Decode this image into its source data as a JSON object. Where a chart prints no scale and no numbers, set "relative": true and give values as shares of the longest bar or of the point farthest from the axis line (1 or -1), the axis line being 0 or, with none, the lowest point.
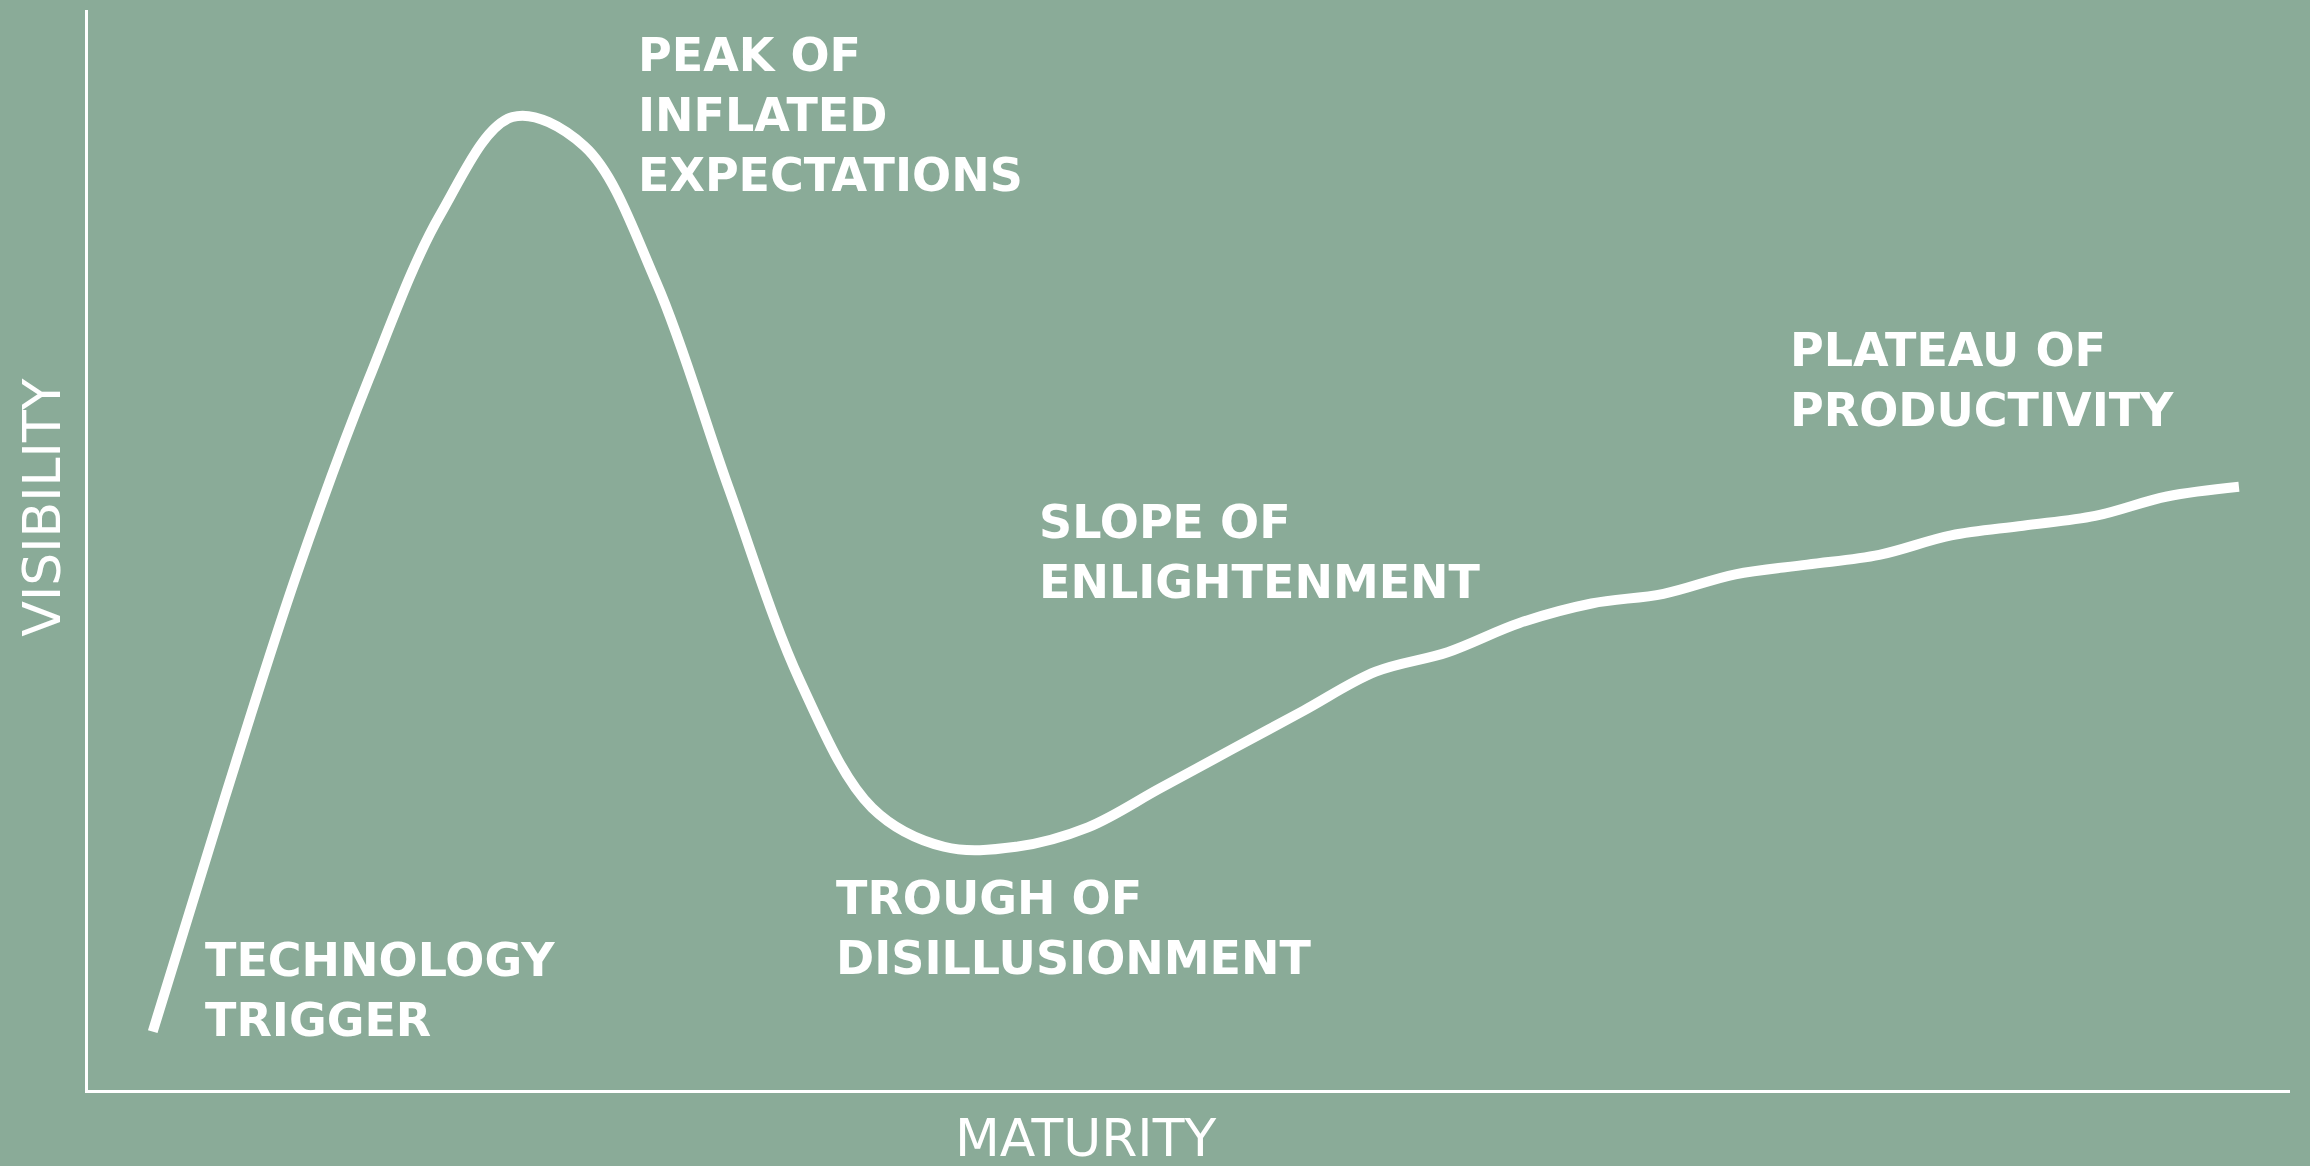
{
  "chart_data": {
    "type": "line",
    "relative": true,
    "xlabel": "MATURITY",
    "ylabel": "VISIBILITY",
    "categories": [
      null,
      null,
      null,
      null,
      null,
      null,
      null,
      null,
      null,
      null,
      null,
      null,
      null,
      null,
      null,
      null,
      null,
      null,
      null,
      null,
      null,
      null,
      null,
      null,
      null,
      null,
      null,
      null,
      null,
      null
    ],
    "series": [
      {
        "color": "#ffffff",
        "values": [
          0.06,
          0.3,
          0.53,
          0.73,
          0.9,
          1.0,
          0.97,
          0.83,
          0.62,
          0.42,
          0.29,
          0.25,
          0.25,
          0.27,
          0.31,
          0.35,
          0.39,
          0.43,
          0.45,
          0.48,
          0.5,
          0.51,
          0.53,
          0.54,
          0.55,
          0.57,
          0.58,
          0.59,
          0.61,
          0.62
        ]
      }
    ],
    "annotations": [
      "TECHNOLOGY\nTRIGGER",
      "PEAK OF\nINFLATED\nEXPECTATIONS",
      "TROUGH OF\nDISILLUSIONMENT",
      "SLOPE OF\nENLIGHTENMENT",
      "PLATEAU OF\nPRODUCTIVITY"
    ],
    "grid": false,
    "marker": "none",
    "line_style": "solid"
  }
}
